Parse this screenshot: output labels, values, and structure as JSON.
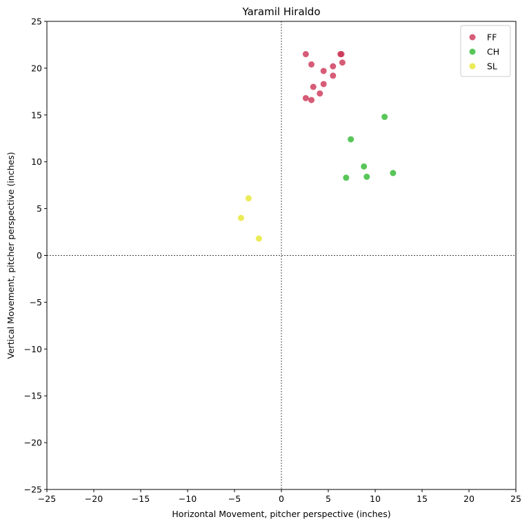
{
  "chart_data": {
    "type": "scatter",
    "title": "Yaramil Hiraldo",
    "xlabel": "Horizontal Movement, pitcher perspective (inches)",
    "ylabel": "Vertical Movement, pitcher perspective (inches)",
    "xlim": [
      -25,
      25
    ],
    "ylim": [
      -25,
      25
    ],
    "xticks": [
      -25,
      -20,
      -15,
      -10,
      -5,
      0,
      5,
      10,
      15,
      20,
      25
    ],
    "yticks": [
      -25,
      -20,
      -15,
      -10,
      -5,
      0,
      5,
      10,
      15,
      20,
      25
    ],
    "grid": false,
    "reference_lines": {
      "x": 0,
      "y": 0,
      "style": "dotted"
    },
    "legend_position": "top-right",
    "series": [
      {
        "name": "FF",
        "color": "#cc3355",
        "points": [
          {
            "x": 2.6,
            "y": 21.5
          },
          {
            "x": 6.3,
            "y": 21.5
          },
          {
            "x": 6.4,
            "y": 21.5
          },
          {
            "x": 3.2,
            "y": 20.4
          },
          {
            "x": 6.5,
            "y": 20.6
          },
          {
            "x": 5.5,
            "y": 20.2
          },
          {
            "x": 4.5,
            "y": 19.7
          },
          {
            "x": 5.5,
            "y": 19.2
          },
          {
            "x": 4.5,
            "y": 18.3
          },
          {
            "x": 3.4,
            "y": 18.0
          },
          {
            "x": 4.1,
            "y": 17.3
          },
          {
            "x": 2.6,
            "y": 16.8
          },
          {
            "x": 3.2,
            "y": 16.6
          }
        ]
      },
      {
        "name": "CH",
        "color": "#2eb82e",
        "points": [
          {
            "x": 11.0,
            "y": 14.8
          },
          {
            "x": 7.4,
            "y": 12.4
          },
          {
            "x": 8.8,
            "y": 9.5
          },
          {
            "x": 11.9,
            "y": 8.8
          },
          {
            "x": 6.9,
            "y": 8.3
          },
          {
            "x": 9.1,
            "y": 8.4
          }
        ]
      },
      {
        "name": "SL",
        "color": "#e6e62e",
        "points": [
          {
            "x": -3.5,
            "y": 6.1
          },
          {
            "x": -4.3,
            "y": 4.0
          },
          {
            "x": -2.4,
            "y": 1.8
          }
        ]
      }
    ]
  }
}
